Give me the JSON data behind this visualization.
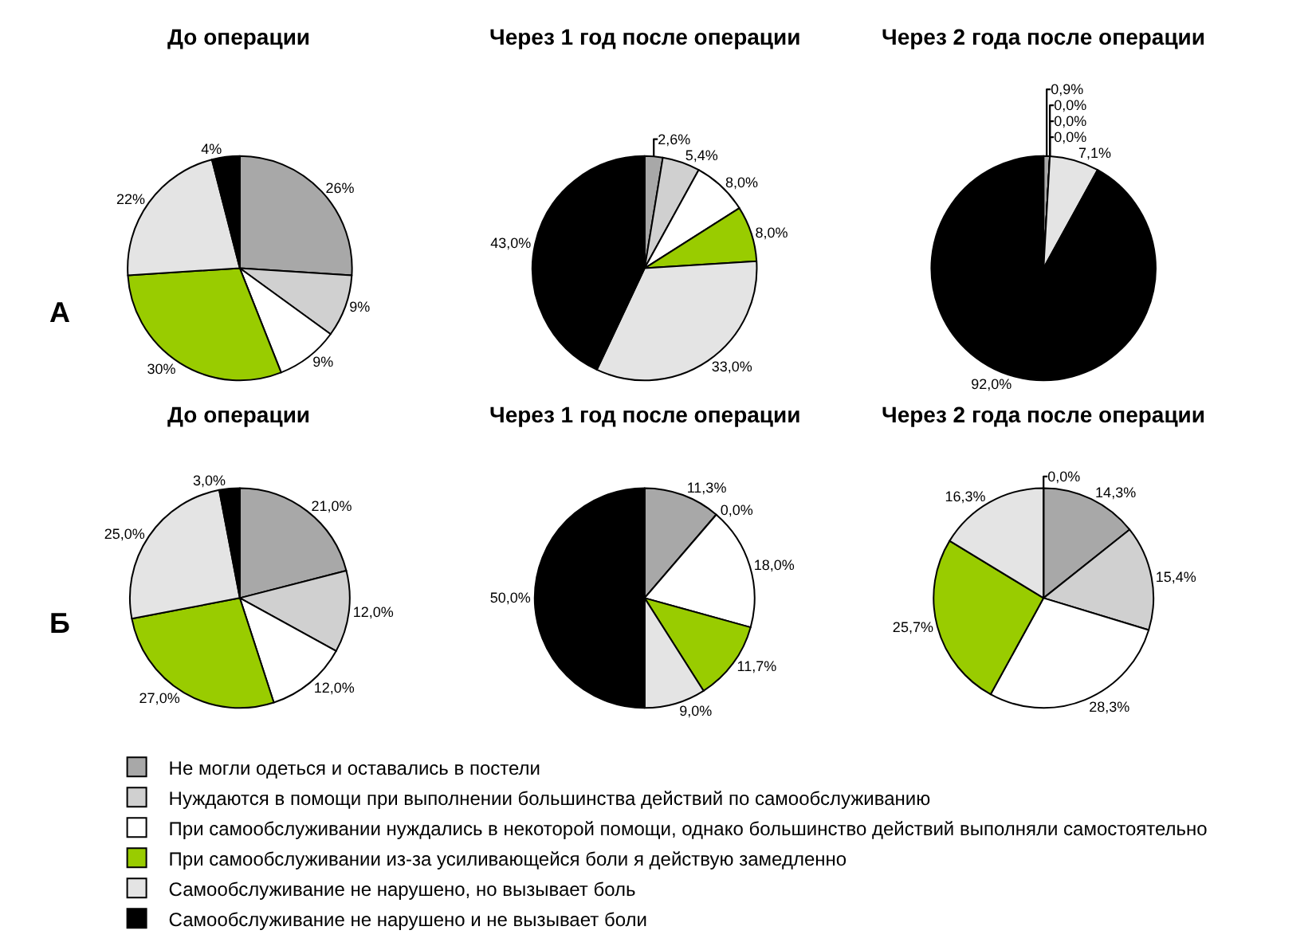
{
  "chart_data": [
    {
      "type": "pie",
      "title": "До операции",
      "annotations": [
        "А"
      ],
      "legend": "bottom",
      "categories": [
        "Не могли одеться и оставались в постели",
        "Нуждаются в помощи при выполнении большинства действий по самообслуживанию",
        "При самообслуживании нуждались в некоторой помощи, однако большинство действий выполняли самостоятельно",
        "При самообслуживании из-за усиливающейся боли я действую замедленно",
        "Самообслуживание не нарушено, но вызывает боль",
        "Самообслуживание не нарушено и не вызывает боли"
      ],
      "values": [
        26,
        9,
        9,
        30,
        22,
        4
      ],
      "value_labels": [
        "26%",
        "9%",
        "9%",
        "30%",
        "22%",
        "4%"
      ],
      "colors": [
        "#a8a8a8",
        "#d0d0d0",
        "#ffffff",
        "#99cc00",
        "#e4e4e4",
        "#000000"
      ]
    },
    {
      "type": "pie",
      "title": "Через 1 год после операции",
      "values": [
        2.6,
        5.4,
        8.0,
        8.0,
        33.0,
        43.0
      ],
      "value_labels": [
        "2,6%",
        "5,4%",
        "8,0%",
        "8,0%",
        "33,0%",
        "43,0%"
      ],
      "colors": [
        "#a8a8a8",
        "#d0d0d0",
        "#ffffff",
        "#99cc00",
        "#e4e4e4",
        "#000000"
      ]
    },
    {
      "type": "pie",
      "title": "Через 2 года после операции",
      "values": [
        0.9,
        0.0,
        0.0,
        0.0,
        7.1,
        92.0
      ],
      "value_labels": [
        "0,9%",
        "0,0%",
        "0,0%",
        "0,0%",
        "7,1%",
        "92,0%"
      ],
      "colors": [
        "#a8a8a8",
        "#d0d0d0",
        "#ffffff",
        "#99cc00",
        "#e4e4e4",
        "#000000"
      ]
    },
    {
      "type": "pie",
      "title": "До операции",
      "annotations": [
        "Б"
      ],
      "values": [
        21.0,
        12.0,
        12.0,
        27.0,
        25.0,
        3.0
      ],
      "value_labels": [
        "21,0%",
        "12,0%",
        "12,0%",
        "27,0%",
        "25,0%",
        "3,0%"
      ],
      "colors": [
        "#a8a8a8",
        "#d0d0d0",
        "#ffffff",
        "#99cc00",
        "#e4e4e4",
        "#000000"
      ]
    },
    {
      "type": "pie",
      "title": "Через 1 год после операции",
      "values": [
        11.3,
        0.0,
        18.0,
        11.7,
        9.0,
        50.0
      ],
      "value_labels": [
        "11,3%",
        "0,0%",
        "18,0%",
        "11,7%",
        "9,0%",
        "50,0%"
      ],
      "colors": [
        "#a8a8a8",
        "#d0d0d0",
        "#ffffff",
        "#99cc00",
        "#e4e4e4",
        "#000000"
      ]
    },
    {
      "type": "pie",
      "title": "Через 2 года после операции",
      "values": [
        14.3,
        15.4,
        28.3,
        25.7,
        16.3,
        0.0
      ],
      "value_labels": [
        "14,3%",
        "15,4%",
        "28,3%",
        "25,7%",
        "16,3%",
        "0,0%"
      ],
      "colors": [
        "#a8a8a8",
        "#d0d0d0",
        "#ffffff",
        "#99cc00",
        "#e4e4e4",
        "#000000"
      ]
    }
  ]
}
